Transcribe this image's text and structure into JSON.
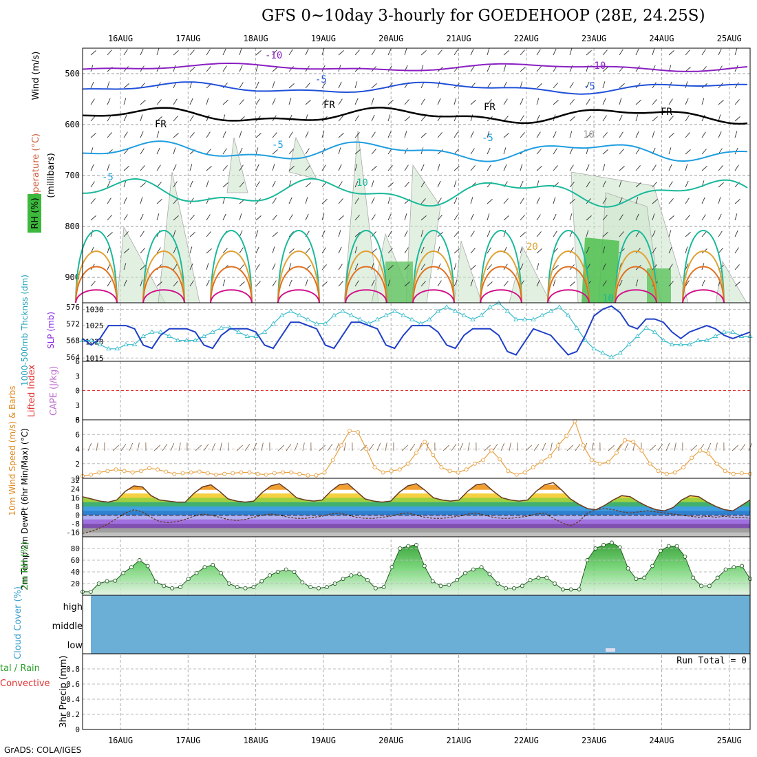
{
  "title": "GFS 0~10day 3-hourly for GOEDEHOOP (28E, 24.25S)",
  "credit": "GrADS: COLA/IGES",
  "dates": [
    "16AUG",
    "17AUG",
    "18AUG",
    "19AUG",
    "20AUG",
    "21AUG",
    "22AUG",
    "23AUG",
    "24AUG",
    "25AUG"
  ],
  "colors": {
    "temp_neg10": "#8a1fc1",
    "temp_neg5": "#2050d8",
    "temp_fr": "#000000",
    "temp_5": "#1e9ee0",
    "temp_10": "#19b89a",
    "temp_20": "#e0a030",
    "temp_hot": "#e07020",
    "temp_vhot": "#d0108a",
    "slp": "#1f3fc8",
    "thickness": "#33bbcc",
    "wind10m": "#e8a040",
    "rh2m": "#2a9a2a",
    "cloud": "#6baed6",
    "lifted": "#e03030"
  },
  "panels": {
    "upper": {
      "ylabel_wind": "Wind (m/s)",
      "ylabel_temp": "Temperature (°C)",
      "ylabel_rh": "RH (%)",
      "ylabel_mb": "(millibars)",
      "yticks": [
        "500",
        "600",
        "700",
        "800",
        "900"
      ],
      "contour_labels": [
        "-10",
        "-10",
        "-5",
        "-5",
        "FR",
        "FR",
        "FR",
        "FR",
        "-5",
        "-5",
        "-5",
        "10",
        "10",
        "20",
        "10"
      ]
    },
    "slp": {
      "ylabel_thk": "1000-500mb Thcknss (dm)",
      "ylabel_slp": "SLP (mb)",
      "left_ticks": [
        "576",
        "572",
        "568",
        "564"
      ],
      "right_ticks": [
        "1030",
        "1025",
        "1020",
        "1015"
      ]
    },
    "cape": {
      "ylabel_li": "Lifted Index",
      "ylabel_cape": "CAPE (J/kg)",
      "ticks": [
        "6",
        "3",
        "0",
        "3",
        "6"
      ]
    },
    "wind10": {
      "ylabel": "10m Wind Speed (m/s) & Barbs",
      "ticks": [
        "8",
        "6",
        "4",
        "2",
        "0"
      ]
    },
    "temp2m": {
      "ylabel": "2m Temp 2m DewPt (6hr Min/Max) (°C)",
      "ticks": [
        "32",
        "24",
        "16",
        "8",
        "0",
        "-8",
        "-16"
      ]
    },
    "rh2m": {
      "ylabel": "2m RH (%)",
      "ticks": [
        "80",
        "60",
        "40",
        "20"
      ]
    },
    "cloud": {
      "ylabel": "Cloud Cover (%)",
      "levels": [
        "high",
        "middle",
        "low"
      ]
    },
    "precip": {
      "ylabel_left": "tal / Rain",
      "ylabel_left2": "Convective",
      "ylabel": "3hr Precip (mm)",
      "ticks": [
        "0.8",
        "0.6",
        "0.4",
        "0.2",
        "0"
      ],
      "run_total": "Run Total = 0"
    }
  },
  "chart_data": [
    {
      "type": "line",
      "title": "SLP (mb)",
      "x_unit": "3-hourly steps from 15AUG 12Z",
      "ylim": [
        1015,
        1032
      ],
      "series": [
        {
          "name": "SLP",
          "values": [
            1021,
            1019,
            1021,
            1025,
            1025,
            1025,
            1024,
            1019,
            1018,
            1022,
            1024,
            1024,
            1024,
            1023,
            1019,
            1018,
            1022,
            1024,
            1024,
            1024,
            1023,
            1019,
            1018,
            1022,
            1026,
            1026,
            1025,
            1024,
            1019,
            1018,
            1022,
            1026,
            1026,
            1025,
            1024,
            1019,
            1018,
            1022,
            1025,
            1025,
            1025,
            1023,
            1019,
            1018,
            1022,
            1024,
            1024,
            1024,
            1022,
            1017,
            1016,
            1020,
            1024,
            1023,
            1022,
            1019,
            1016,
            1017,
            1022,
            1028,
            1030,
            1031,
            1029,
            1025,
            1024,
            1027,
            1027,
            1026,
            1023,
            1021,
            1023,
            1024,
            1025,
            1024,
            1022,
            1021,
            1022,
            1023
          ]
        }
      ]
    },
    {
      "type": "line",
      "title": "1000-500mb Thcknss (dm)",
      "ylim": [
        563,
        577
      ],
      "series": [
        {
          "name": "Thickness",
          "values": [
            568,
            568,
            567,
            566,
            566,
            567,
            567,
            569,
            570,
            570,
            569,
            568,
            568,
            568,
            569,
            570,
            571,
            571,
            570,
            569,
            569,
            570,
            572,
            574,
            575,
            574,
            573,
            572,
            572,
            574,
            575,
            574,
            573,
            572,
            573,
            574,
            575,
            574,
            573,
            572,
            573,
            575,
            576,
            575,
            574,
            573,
            574,
            576,
            577,
            575,
            573,
            573,
            573,
            574,
            575,
            576,
            574,
            571,
            568,
            566,
            565,
            564,
            565,
            567,
            569,
            571,
            570,
            568,
            567,
            567,
            567,
            568,
            568,
            569,
            570,
            570,
            569,
            569
          ]
        }
      ]
    },
    {
      "type": "line",
      "title": "10m Wind Speed (m/s)",
      "ylim": [
        0,
        8
      ],
      "series": [
        {
          "name": "Wind speed",
          "values": [
            0.3,
            0.5,
            0.8,
            1.0,
            1.2,
            1.0,
            0.8,
            1.0,
            1.4,
            1.2,
            0.9,
            0.6,
            0.7,
            0.8,
            0.9,
            0.7,
            0.5,
            0.6,
            0.7,
            0.8,
            0.8,
            0.6,
            0.5,
            0.7,
            0.8,
            0.8,
            0.6,
            0.4,
            0.4,
            0.8,
            2.5,
            4.5,
            6.5,
            6.3,
            4.0,
            1.5,
            0.8,
            1.0,
            1.2,
            2.0,
            3.5,
            5.0,
            3.2,
            1.5,
            1.0,
            0.8,
            1.2,
            2.0,
            2.5,
            3.8,
            2.6,
            1.0,
            0.5,
            0.8,
            1.5,
            2.3,
            3.0,
            4.5,
            5.8,
            7.8,
            4.5,
            2.5,
            2.0,
            2.2,
            3.5,
            5.2,
            5.0,
            3.8,
            2.0,
            1.0,
            0.6,
            0.8,
            1.5,
            2.8,
            3.8,
            3.4,
            2.0,
            1.0,
            0.6,
            0.7,
            0.6
          ]
        }
      ]
    },
    {
      "type": "area",
      "title": "2m Temp (°C)",
      "ylim": [
        -20,
        34
      ],
      "series": [
        {
          "name": "2m Temp",
          "values": [
            17,
            15,
            13,
            12,
            14,
            22,
            27,
            26,
            18,
            14,
            13,
            12,
            12,
            20,
            26,
            28,
            22,
            15,
            13,
            12,
            13,
            21,
            27,
            29,
            23,
            16,
            14,
            13,
            14,
            22,
            28,
            29,
            22,
            15,
            13,
            12,
            13,
            21,
            27,
            29,
            23,
            16,
            14,
            13,
            14,
            22,
            28,
            29,
            22,
            16,
            14,
            13,
            14,
            22,
            28,
            30,
            23,
            15,
            10,
            6,
            5,
            9,
            14,
            18,
            17,
            12,
            8,
            5,
            4,
            7,
            14,
            18,
            17,
            12,
            8,
            5,
            4,
            9,
            14
          ]
        },
        {
          "name": "2m DewPt",
          "values": [
            -17,
            -15,
            -12,
            -8,
            -3,
            2,
            5,
            3,
            -2,
            -6,
            -7,
            -6,
            -4,
            -1,
            1,
            0,
            -2,
            -4,
            -5,
            -4,
            -2,
            0,
            1,
            0,
            -2,
            -3,
            -3,
            -2,
            -1,
            1,
            2,
            0,
            -2,
            -3,
            -3,
            -2,
            -1,
            1,
            2,
            0,
            -2,
            -3,
            -3,
            -2,
            -1,
            1,
            2,
            0,
            -2,
            -3,
            -3,
            -2,
            -1,
            1,
            2,
            -3,
            -7,
            -10,
            -6,
            2,
            5,
            6,
            5,
            3,
            2,
            3,
            4,
            3,
            2,
            1,
            0,
            -1,
            -2,
            -1,
            -2,
            -1,
            -2,
            -2,
            -3
          ]
        }
      ]
    },
    {
      "type": "area",
      "title": "2m RH (%)",
      "ylim": [
        0,
        100
      ],
      "series": [
        {
          "name": "2m RH",
          "values": [
            6,
            6,
            20,
            24,
            25,
            38,
            48,
            60,
            50,
            23,
            16,
            12,
            14,
            28,
            38,
            48,
            52,
            38,
            20,
            14,
            12,
            14,
            24,
            34,
            40,
            44,
            40,
            22,
            14,
            12,
            14,
            20,
            28,
            34,
            36,
            26,
            12,
            14,
            48,
            80,
            84,
            86,
            50,
            24,
            16,
            18,
            26,
            38,
            44,
            48,
            36,
            20,
            12,
            12,
            16,
            26,
            30,
            30,
            20,
            10,
            10,
            10,
            60,
            80,
            86,
            90,
            82,
            46,
            28,
            30,
            50,
            76,
            84,
            84,
            66,
            30,
            16,
            16,
            30,
            44,
            48,
            50,
            28
          ]
        }
      ]
    },
    {
      "type": "bar",
      "title": "3hr Precip (mm)",
      "ylim": [
        0,
        1
      ],
      "series": [
        {
          "name": "Precip",
          "values": []
        }
      ]
    }
  ]
}
